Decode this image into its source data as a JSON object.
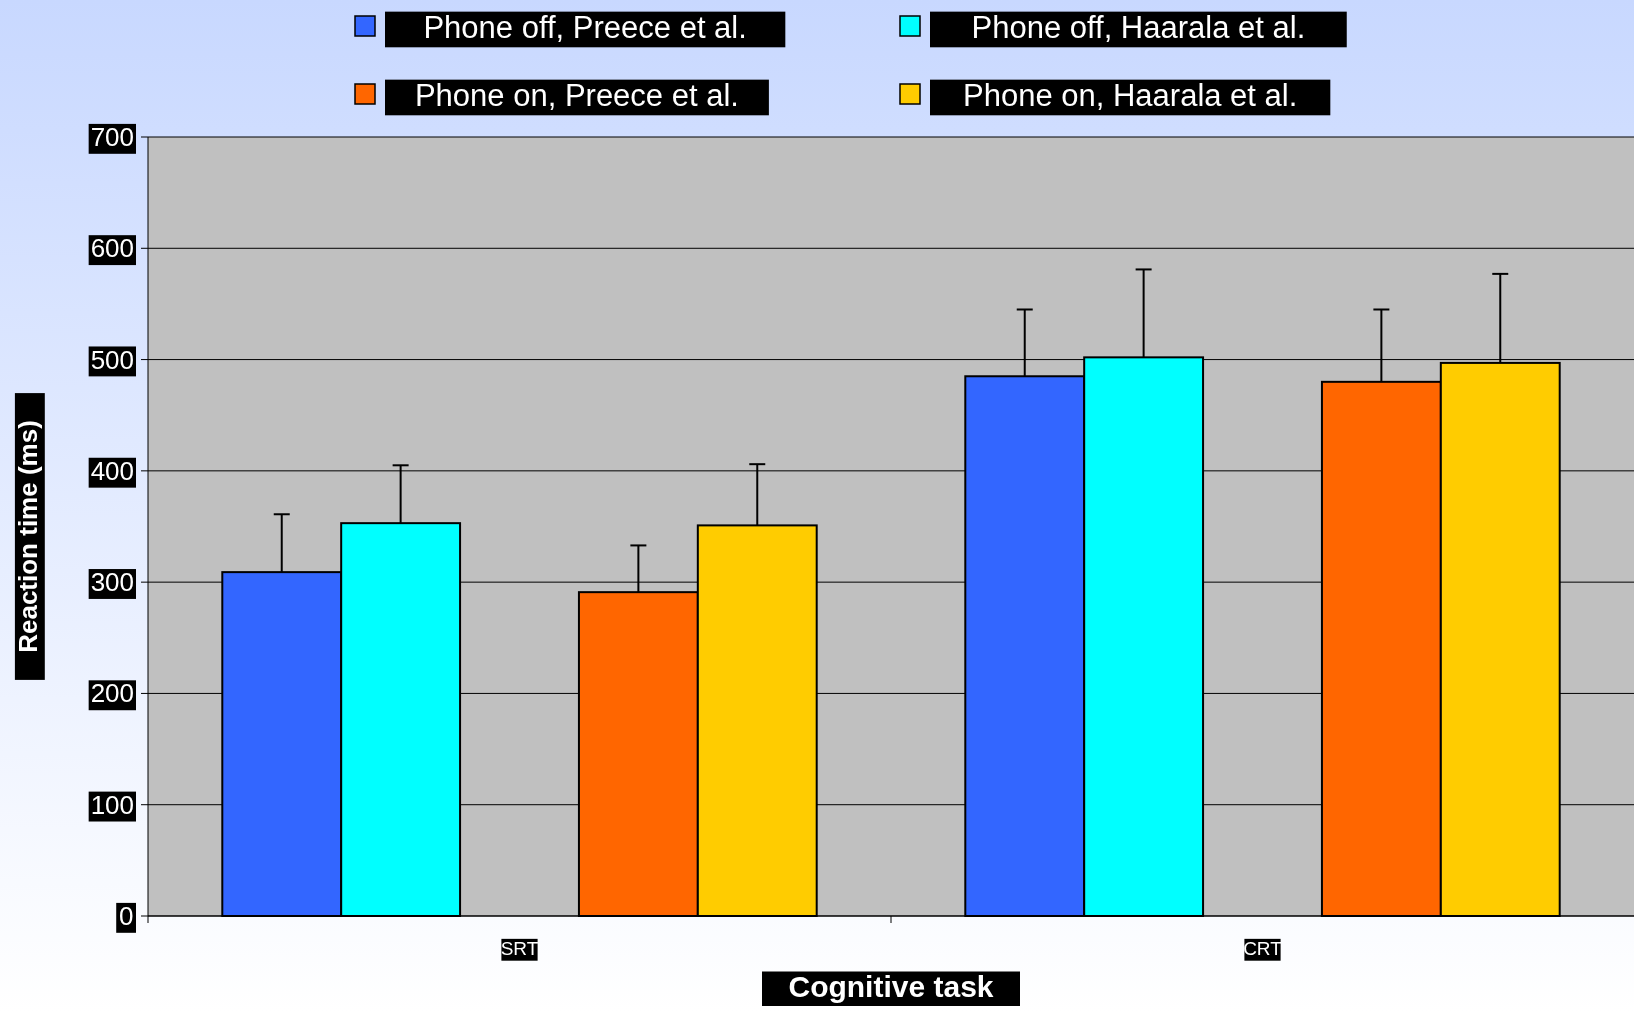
{
  "chart_data": {
    "type": "bar",
    "xlabel": "Cognitive task",
    "ylabel": "Reaction time (ms)",
    "categories": [
      "SRT",
      "CRT"
    ],
    "series": [
      {
        "name": "Phone off, Preece et al.",
        "color": "#3366ff",
        "values": [
          309,
          485
        ],
        "errors": [
          [
            309,
            361
          ],
          [
            485,
            545
          ]
        ]
      },
      {
        "name": "Phone off, Haarala et al.",
        "color": "#00ffff",
        "values": [
          353,
          502
        ],
        "errors": [
          [
            353,
            405
          ],
          [
            502,
            581
          ]
        ]
      },
      {
        "name": "Phone on, Preece et al.",
        "color": "#ff6600",
        "values": [
          291,
          480
        ],
        "errors": [
          [
            291,
            333
          ],
          [
            480,
            545
          ]
        ]
      },
      {
        "name": "Phone on, Haarala et al.",
        "color": "#ffcc00",
        "values": [
          351,
          497
        ],
        "errors": [
          [
            351,
            406
          ],
          [
            497,
            577
          ]
        ]
      }
    ],
    "ylim": [
      0,
      700
    ],
    "yticks": [
      0,
      100,
      200,
      300,
      400,
      500,
      600,
      700
    ],
    "grid": "y",
    "legend": "top"
  }
}
